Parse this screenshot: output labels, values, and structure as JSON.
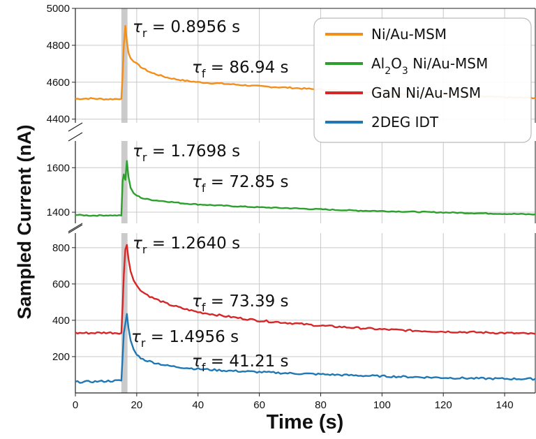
{
  "chart_data": {
    "type": "line",
    "xlabel": "Time (s)",
    "ylabel": "Sampled Current (nA)",
    "xlim": [
      0,
      150
    ],
    "x_ticks": [
      "0",
      "20",
      "40",
      "60",
      "80",
      "100",
      "120",
      "140"
    ],
    "grid": true,
    "legend_position": "top-right",
    "light_pulse_interval_s": [
      15,
      17
    ],
    "series": [
      {
        "name": "Ni/Au-MSM",
        "name_html": "Ni/Au-MSM",
        "color": "#f28e1c",
        "panel": "top",
        "ylim": [
          4380,
          5000
        ],
        "y_ticks": [
          "4400",
          "4600",
          "4800",
          "5000"
        ],
        "x": [
          0,
          5,
          10,
          15,
          15.3,
          15.8,
          16.3,
          16.8,
          17.3,
          18,
          19,
          20,
          22,
          25,
          30,
          35,
          40,
          50,
          60,
          70,
          80,
          90,
          100,
          110,
          120,
          130,
          140,
          150
        ],
        "y": [
          4510,
          4512,
          4508,
          4510,
          4600,
          4800,
          4905,
          4820,
          4760,
          4730,
          4715,
          4700,
          4675,
          4650,
          4625,
          4610,
          4600,
          4590,
          4578,
          4570,
          4560,
          4550,
          4542,
          4535,
          4528,
          4523,
          4518,
          4515
        ],
        "annotations": [
          {
            "symbol": "τ",
            "sub": "r",
            "text": " = 0.8956 s"
          },
          {
            "symbol": "τ",
            "sub": "f",
            "text": " = 86.94 s"
          }
        ]
      },
      {
        "name": "Al2O3 Ni/Au-MSM",
        "name_html": "Al<tspan baseline-shift=\"sub\" font-size=\"14px\">2</tspan>O<tspan baseline-shift=\"sub\" font-size=\"14px\">3</tspan> Ni/Au-MSM",
        "color": "#2ca02c",
        "panel": "middle",
        "ylim": [
          1350,
          1720
        ],
        "y_ticks": [
          "1400",
          "1600"
        ],
        "x": [
          0,
          5,
          10,
          15,
          15.4,
          15.8,
          16.3,
          16.8,
          17.3,
          18,
          19,
          20,
          22,
          25,
          30,
          35,
          40,
          50,
          60,
          70,
          80,
          90,
          100,
          110,
          120,
          130,
          140,
          150
        ],
        "y": [
          1388,
          1385,
          1386,
          1385,
          1540,
          1570,
          1545,
          1630,
          1560,
          1510,
          1485,
          1475,
          1462,
          1455,
          1448,
          1440,
          1435,
          1428,
          1422,
          1418,
          1413,
          1408,
          1405,
          1402,
          1399,
          1396,
          1393,
          1390
        ],
        "annotations": [
          {
            "symbol": "τ",
            "sub": "r",
            "text": " = 1.7698 s"
          },
          {
            "symbol": "τ",
            "sub": "f",
            "text": " = 72.85 s"
          }
        ]
      },
      {
        "name": "GaN Ni/Au-MSM",
        "name_html": "GaN Ni/Au-MSM",
        "color": "#d62728",
        "panel": "bottom",
        "ylim": [
          0,
          880
        ],
        "y_ticks": [
          "200",
          "400",
          "600",
          "800"
        ],
        "x": [
          0,
          5,
          10,
          15,
          15.4,
          15.8,
          16.3,
          16.8,
          17.3,
          18,
          19,
          20,
          22,
          25,
          30,
          35,
          40,
          50,
          60,
          70,
          80,
          90,
          100,
          110,
          120,
          130,
          140,
          150
        ],
        "y": [
          330,
          330,
          332,
          330,
          480,
          650,
          790,
          815,
          740,
          670,
          620,
          590,
          555,
          525,
          490,
          465,
          445,
          420,
          398,
          385,
          370,
          360,
          350,
          343,
          338,
          334,
          330,
          325
        ],
        "annotations": [
          {
            "symbol": "τ",
            "sub": "r",
            "text": " = 1.2640 s"
          },
          {
            "symbol": "τ",
            "sub": "f",
            "text": " = 73.39 s"
          }
        ]
      },
      {
        "name": "2DEG IDT",
        "name_html": "2DEG IDT",
        "color": "#1f77b4",
        "panel": "bottom",
        "ylim": [
          0,
          880
        ],
        "y_ticks": [
          "200",
          "400",
          "600",
          "800"
        ],
        "x": [
          0,
          5,
          10,
          15,
          15.4,
          15.8,
          16.3,
          16.8,
          17.3,
          18,
          19,
          20,
          22,
          25,
          30,
          35,
          40,
          50,
          60,
          70,
          80,
          90,
          100,
          110,
          120,
          130,
          140,
          150
        ],
        "y": [
          60,
          62,
          65,
          68,
          200,
          330,
          380,
          435,
          360,
          290,
          240,
          210,
          185,
          170,
          150,
          140,
          132,
          122,
          115,
          108,
          103,
          97,
          92,
          88,
          84,
          80,
          78,
          77
        ],
        "annotations": [
          {
            "symbol": "τ",
            "sub": "r",
            "text": " = 1.4956 s"
          },
          {
            "symbol": "τ",
            "sub": "f",
            "text": " = 41.21 s"
          }
        ]
      }
    ]
  }
}
